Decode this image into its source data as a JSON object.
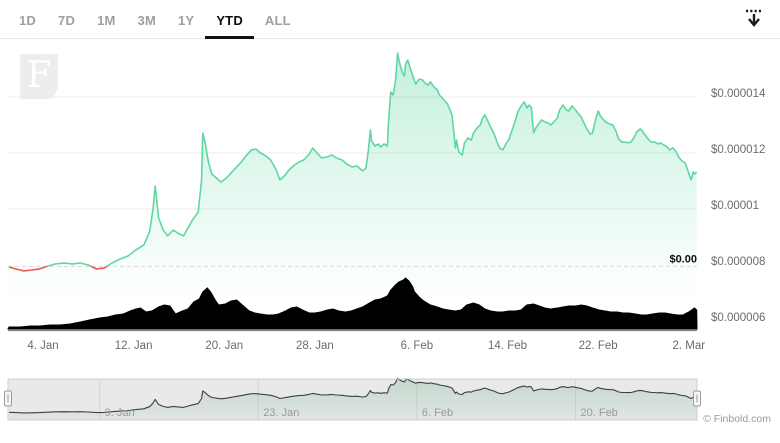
{
  "range_selector": {
    "selected": "YTD",
    "options": [
      {
        "label": "1D"
      },
      {
        "label": "7D"
      },
      {
        "label": "1M"
      },
      {
        "label": "3M"
      },
      {
        "label": "1Y"
      },
      {
        "label": "YTD"
      },
      {
        "label": "ALL"
      }
    ]
  },
  "toolbar": {
    "export_tooltip": "Download chart"
  },
  "watermark": {
    "letter": "F"
  },
  "footer": {
    "copyright": "© Finbold.com"
  },
  "colors": {
    "line_up": "#5fd7a2",
    "line_down": "#f0544c",
    "area_fill": "#5fd7a2",
    "volume": "#000000",
    "grid": "#ececec",
    "baseline_dash": "#d8d8d8",
    "axis_line": "#808080",
    "axis_label": "#6b6b6b",
    "selector_inactive": "#9aa0a5",
    "selector_active": "#0c0c0c",
    "nav_bg": "#e9e9e9",
    "nav_grid": "#d6d6d6",
    "nav_line": "#3a4045",
    "nav_fill": "#86b89e",
    "nav_border": "#cfcfcf",
    "handle_fill": "#f6f6f6",
    "handle_border": "#9a9a9a",
    "copyright": "#9b9b9b"
  },
  "chart_data": {
    "type": "line",
    "subtype": "stock price chart with volume pane and navigator (YTD range)",
    "title": "",
    "legend": "none",
    "grid": "horizontal, on",
    "price_unit_note": "price values given in millionths of USD; 12.5 = $0.0000125",
    "x_axis": {
      "unit": "days since 1. Jan",
      "range_days": [
        0,
        60.7
      ],
      "ticks": [
        {
          "label": "4. Jan",
          "day": 3
        },
        {
          "label": "12. Jan",
          "day": 11
        },
        {
          "label": "20. Jan",
          "day": 19
        },
        {
          "label": "28. Jan",
          "day": 27
        },
        {
          "label": "6. Feb",
          "day": 36
        },
        {
          "label": "14. Feb",
          "day": 44
        },
        {
          "label": "22. Feb",
          "day": 52
        },
        {
          "label": "2. Mar",
          "day": 60
        }
      ]
    },
    "y_axis": {
      "side": "right",
      "range_micro_usd": [
        6,
        15.9
      ],
      "ticks": [
        {
          "label": "$0.000014",
          "micro": 14
        },
        {
          "label": "$0.000012",
          "micro": 12
        },
        {
          "label": "$0.00001",
          "micro": 10
        },
        {
          "label": "$0.000008",
          "micro": 8
        },
        {
          "label": "$0.000006",
          "micro": 6
        }
      ],
      "gridline_ticks_micro": [
        14,
        12,
        10
      ]
    },
    "baseline": {
      "label": "$0.00",
      "micro": 7.95,
      "style": "dashed",
      "note": "start-of-period price; line red below / green above"
    },
    "price": [
      [
        0,
        7.93
      ],
      [
        0.6,
        7.86
      ],
      [
        1.3,
        7.79
      ],
      [
        2,
        7.82
      ],
      [
        2.7,
        7.86
      ],
      [
        3.4,
        7.96
      ],
      [
        4.1,
        8.04
      ],
      [
        4.9,
        8.07
      ],
      [
        5.6,
        8.04
      ],
      [
        6.3,
        8.07
      ],
      [
        7,
        8.0
      ],
      [
        7.7,
        7.86
      ],
      [
        8.4,
        7.89
      ],
      [
        9.1,
        8.07
      ],
      [
        9.8,
        8.21
      ],
      [
        10.5,
        8.32
      ],
      [
        11.2,
        8.54
      ],
      [
        11.9,
        8.71
      ],
      [
        12.4,
        9.18
      ],
      [
        12.7,
        9.96
      ],
      [
        12.9,
        10.82
      ],
      [
        13.2,
        9.68
      ],
      [
        13.6,
        9.25
      ],
      [
        14,
        9.04
      ],
      [
        14.5,
        9.25
      ],
      [
        14.9,
        9.14
      ],
      [
        15.4,
        9.04
      ],
      [
        15.8,
        9.32
      ],
      [
        16.2,
        9.61
      ],
      [
        16.7,
        9.89
      ],
      [
        17,
        11.04
      ],
      [
        17.1,
        12.71
      ],
      [
        17.3,
        12.39
      ],
      [
        17.6,
        11.68
      ],
      [
        17.9,
        11.25
      ],
      [
        18.3,
        11.11
      ],
      [
        18.7,
        10.96
      ],
      [
        19.2,
        11.11
      ],
      [
        19.6,
        11.29
      ],
      [
        20,
        11.46
      ],
      [
        20.5,
        11.68
      ],
      [
        20.9,
        11.89
      ],
      [
        21.4,
        12.11
      ],
      [
        21.8,
        12.14
      ],
      [
        22.2,
        12.0
      ],
      [
        22.7,
        11.89
      ],
      [
        23.1,
        11.75
      ],
      [
        23.6,
        11.39
      ],
      [
        23.9,
        11.04
      ],
      [
        24.3,
        11.18
      ],
      [
        24.7,
        11.39
      ],
      [
        25.2,
        11.57
      ],
      [
        25.6,
        11.68
      ],
      [
        26,
        11.75
      ],
      [
        26.5,
        11.96
      ],
      [
        26.8,
        12.18
      ],
      [
        27.2,
        12.0
      ],
      [
        27.6,
        11.82
      ],
      [
        28.1,
        11.86
      ],
      [
        28.5,
        11.93
      ],
      [
        28.9,
        11.82
      ],
      [
        29.4,
        11.75
      ],
      [
        29.8,
        11.61
      ],
      [
        30.3,
        11.5
      ],
      [
        30.7,
        11.54
      ],
      [
        31.2,
        11.36
      ],
      [
        31.5,
        11.46
      ],
      [
        31.7,
        12.04
      ],
      [
        31.9,
        12.82
      ],
      [
        32,
        12.43
      ],
      [
        32.3,
        12.25
      ],
      [
        32.6,
        12.32
      ],
      [
        32.8,
        12.21
      ],
      [
        33.1,
        12.32
      ],
      [
        33.4,
        12.25
      ],
      [
        33.5,
        13.18
      ],
      [
        33.7,
        14.18
      ],
      [
        33.9,
        14.07
      ],
      [
        34.1,
        14.54
      ],
      [
        34.3,
        15.57
      ],
      [
        34.5,
        15.18
      ],
      [
        34.7,
        14.89
      ],
      [
        34.9,
        14.75
      ],
      [
        35,
        15.18
      ],
      [
        35.2,
        15.32
      ],
      [
        35.4,
        15.04
      ],
      [
        35.7,
        14.68
      ],
      [
        35.9,
        14.46
      ],
      [
        36.2,
        14.64
      ],
      [
        36.5,
        14.61
      ],
      [
        36.7,
        14.5
      ],
      [
        37,
        14.43
      ],
      [
        37.2,
        14.54
      ],
      [
        37.5,
        14.36
      ],
      [
        37.8,
        14.25
      ],
      [
        38,
        14.07
      ],
      [
        38.4,
        13.89
      ],
      [
        38.7,
        13.75
      ],
      [
        39.1,
        13.36
      ],
      [
        39.4,
        12.18
      ],
      [
        39.5,
        12.46
      ],
      [
        39.7,
        12.04
      ],
      [
        40,
        11.93
      ],
      [
        40.2,
        12.36
      ],
      [
        40.5,
        12.54
      ],
      [
        40.8,
        12.46
      ],
      [
        41,
        12.71
      ],
      [
        41.3,
        12.89
      ],
      [
        41.6,
        13.0
      ],
      [
        41.8,
        13.25
      ],
      [
        42,
        13.36
      ],
      [
        42.3,
        13.11
      ],
      [
        42.5,
        12.93
      ],
      [
        42.8,
        12.71
      ],
      [
        43.1,
        12.36
      ],
      [
        43.3,
        12.18
      ],
      [
        43.6,
        12.11
      ],
      [
        43.9,
        12.36
      ],
      [
        44.1,
        12.46
      ],
      [
        44.4,
        12.82
      ],
      [
        44.7,
        13.18
      ],
      [
        44.9,
        13.46
      ],
      [
        45.2,
        13.68
      ],
      [
        45.4,
        13.79
      ],
      [
        45.5,
        13.82
      ],
      [
        45.7,
        13.61
      ],
      [
        45.9,
        13.71
      ],
      [
        46.1,
        13.64
      ],
      [
        46.3,
        12.71
      ],
      [
        46.5,
        12.89
      ],
      [
        46.8,
        13.07
      ],
      [
        47,
        13.18
      ],
      [
        47.3,
        13.11
      ],
      [
        47.6,
        13.07
      ],
      [
        47.8,
        13.0
      ],
      [
        48.1,
        13.11
      ],
      [
        48.4,
        13.25
      ],
      [
        48.6,
        13.54
      ],
      [
        48.9,
        13.71
      ],
      [
        49.2,
        13.54
      ],
      [
        49.4,
        13.5
      ],
      [
        49.7,
        13.68
      ],
      [
        50,
        13.54
      ],
      [
        50.2,
        13.43
      ],
      [
        50.5,
        13.29
      ],
      [
        50.7,
        13.11
      ],
      [
        51,
        12.86
      ],
      [
        51.3,
        12.68
      ],
      [
        51.5,
        12.71
      ],
      [
        51.8,
        13.25
      ],
      [
        52,
        13.5
      ],
      [
        52.2,
        13.32
      ],
      [
        52.5,
        13.18
      ],
      [
        52.8,
        13.07
      ],
      [
        53,
        13.04
      ],
      [
        53.3,
        13.0
      ],
      [
        53.6,
        12.75
      ],
      [
        53.8,
        12.5
      ],
      [
        54.1,
        12.39
      ],
      [
        54.4,
        12.39
      ],
      [
        54.6,
        12.36
      ],
      [
        54.9,
        12.39
      ],
      [
        55.2,
        12.57
      ],
      [
        55.4,
        12.75
      ],
      [
        55.7,
        12.86
      ],
      [
        55.9,
        12.79
      ],
      [
        56.2,
        12.61
      ],
      [
        56.5,
        12.46
      ],
      [
        56.7,
        12.39
      ],
      [
        57,
        12.39
      ],
      [
        57.3,
        12.32
      ],
      [
        57.5,
        12.36
      ],
      [
        57.8,
        12.29
      ],
      [
        58.1,
        12.21
      ],
      [
        58.3,
        12.11
      ],
      [
        58.6,
        12.18
      ],
      [
        58.9,
        12.04
      ],
      [
        59.1,
        11.86
      ],
      [
        59.4,
        11.71
      ],
      [
        59.7,
        11.64
      ],
      [
        59.9,
        11.39
      ],
      [
        60.2,
        11.04
      ],
      [
        60.4,
        11.32
      ],
      [
        60.5,
        11.25
      ],
      [
        60.7,
        11.32
      ]
    ],
    "volume": {
      "unit": "relative height 0-51 (no volume axis labels shown)",
      "points": [
        [
          0,
          2
        ],
        [
          1,
          2
        ],
        [
          1.9,
          3
        ],
        [
          2.7,
          3
        ],
        [
          3.6,
          4
        ],
        [
          4.5,
          4
        ],
        [
          5.4,
          5
        ],
        [
          6.3,
          7
        ],
        [
          7.1,
          9
        ],
        [
          8,
          11
        ],
        [
          8.7,
          12
        ],
        [
          9.4,
          14
        ],
        [
          10.1,
          15
        ],
        [
          10.7,
          18
        ],
        [
          11.2,
          20
        ],
        [
          11.6,
          21
        ],
        [
          12.1,
          17
        ],
        [
          12.6,
          18
        ],
        [
          13.2,
          22
        ],
        [
          13.7,
          24
        ],
        [
          14.2,
          23
        ],
        [
          14.7,
          15
        ],
        [
          15.3,
          18
        ],
        [
          15.8,
          20
        ],
        [
          16.3,
          27
        ],
        [
          16.8,
          30
        ],
        [
          17.1,
          37
        ],
        [
          17.5,
          41
        ],
        [
          17.8,
          37
        ],
        [
          18.2,
          29
        ],
        [
          18.5,
          24
        ],
        [
          19.1,
          25
        ],
        [
          19.6,
          28
        ],
        [
          20.1,
          29
        ],
        [
          20.7,
          23
        ],
        [
          21.2,
          18
        ],
        [
          21.7,
          16
        ],
        [
          22.2,
          15
        ],
        [
          22.8,
          14
        ],
        [
          23.3,
          14
        ],
        [
          23.8,
          15
        ],
        [
          24.4,
          18
        ],
        [
          24.9,
          21
        ],
        [
          25.4,
          22
        ],
        [
          25.9,
          19
        ],
        [
          26.5,
          16
        ],
        [
          27,
          16
        ],
        [
          27.5,
          17
        ],
        [
          28.1,
          19
        ],
        [
          28.6,
          20
        ],
        [
          29.1,
          18
        ],
        [
          29.7,
          17
        ],
        [
          30.2,
          18
        ],
        [
          30.7,
          20
        ],
        [
          31.2,
          22
        ],
        [
          31.8,
          26
        ],
        [
          32.3,
          29
        ],
        [
          32.8,
          30
        ],
        [
          33.4,
          33
        ],
        [
          33.7,
          39
        ],
        [
          34.1,
          44
        ],
        [
          34.4,
          47
        ],
        [
          34.8,
          49
        ],
        [
          35,
          51
        ],
        [
          35.3,
          48
        ],
        [
          35.6,
          43
        ],
        [
          35.8,
          37
        ],
        [
          36.2,
          32
        ],
        [
          36.5,
          29
        ],
        [
          36.9,
          26
        ],
        [
          37.2,
          24
        ],
        [
          37.8,
          22
        ],
        [
          38.3,
          20
        ],
        [
          38.8,
          19
        ],
        [
          39.4,
          18
        ],
        [
          39.9,
          19
        ],
        [
          40.4,
          24
        ],
        [
          41,
          26
        ],
        [
          41.5,
          24
        ],
        [
          42,
          20
        ],
        [
          42.5,
          18
        ],
        [
          43.1,
          17
        ],
        [
          43.6,
          17
        ],
        [
          44.1,
          18
        ],
        [
          44.7,
          18
        ],
        [
          45.2,
          19
        ],
        [
          45.7,
          24
        ],
        [
          46.3,
          25
        ],
        [
          46.8,
          23
        ],
        [
          47.3,
          21
        ],
        [
          47.8,
          20
        ],
        [
          48.4,
          21
        ],
        [
          48.9,
          22
        ],
        [
          49.4,
          23
        ],
        [
          50,
          23
        ],
        [
          50.5,
          24
        ],
        [
          51,
          23
        ],
        [
          51.5,
          21
        ],
        [
          52.1,
          19
        ],
        [
          52.6,
          18
        ],
        [
          53.1,
          17
        ],
        [
          53.7,
          17
        ],
        [
          54.2,
          16
        ],
        [
          54.7,
          16
        ],
        [
          55.3,
          15
        ],
        [
          55.8,
          14
        ],
        [
          56.3,
          14
        ],
        [
          56.8,
          15
        ],
        [
          57.4,
          16
        ],
        [
          57.9,
          16
        ],
        [
          58.4,
          15
        ],
        [
          59,
          14
        ],
        [
          59.5,
          14
        ],
        [
          60,
          17
        ],
        [
          60.5,
          21
        ],
        [
          60.7,
          19
        ]
      ]
    },
    "navigator": {
      "ticks": [
        {
          "label": "9. Jan",
          "day": 8
        },
        {
          "label": "23. Jan",
          "day": 22
        },
        {
          "label": "6. Feb",
          "day": 36
        },
        {
          "label": "20. Feb",
          "day": 50
        }
      ],
      "selected_range": "full"
    }
  }
}
